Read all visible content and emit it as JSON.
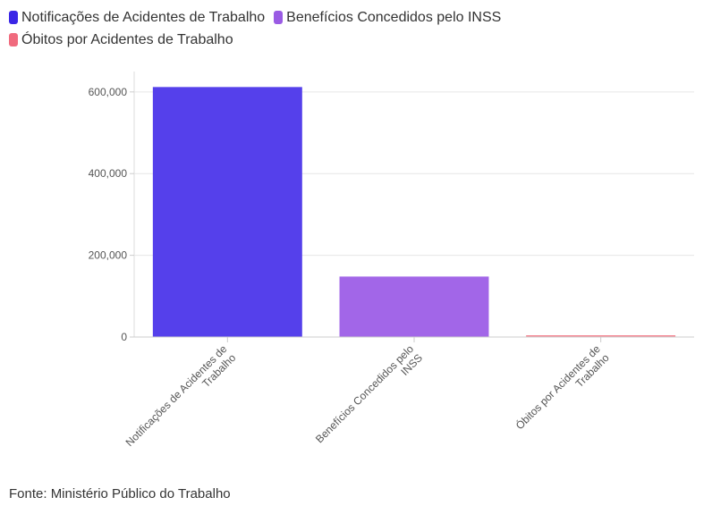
{
  "legend": {
    "items": [
      {
        "label": "Notificações de Acidentes de Trabalho",
        "color": "#3a26e6"
      },
      {
        "label": "Benefícios Concedidos pelo INSS",
        "color": "#9a5be4"
      },
      {
        "label": "Óbitos por Acidentes de Trabalho",
        "color": "#f06b7e"
      }
    ]
  },
  "source": "Fonte: Ministério Público do Trabalho",
  "chart_data": {
    "type": "bar",
    "categories": [
      [
        "Notificações de Acidentes de",
        "Trabalho"
      ],
      [
        "Benefícios Concedidos pelo",
        "INSS"
      ],
      [
        "Óbitos por Acidentes de",
        "Trabalho"
      ]
    ],
    "values": [
      612000,
      148000,
      2000
    ],
    "colors": [
      "#5540eb",
      "#a266e8",
      "#f48a96"
    ],
    "yticks": [
      0,
      200000,
      400000,
      600000
    ],
    "ytick_labels": [
      "0",
      "200,000",
      "400,000",
      "600,000"
    ],
    "ylim": [
      0,
      650000
    ],
    "grid": true,
    "legend_position": "top-left",
    "title": "",
    "xlabel": "",
    "ylabel": ""
  }
}
